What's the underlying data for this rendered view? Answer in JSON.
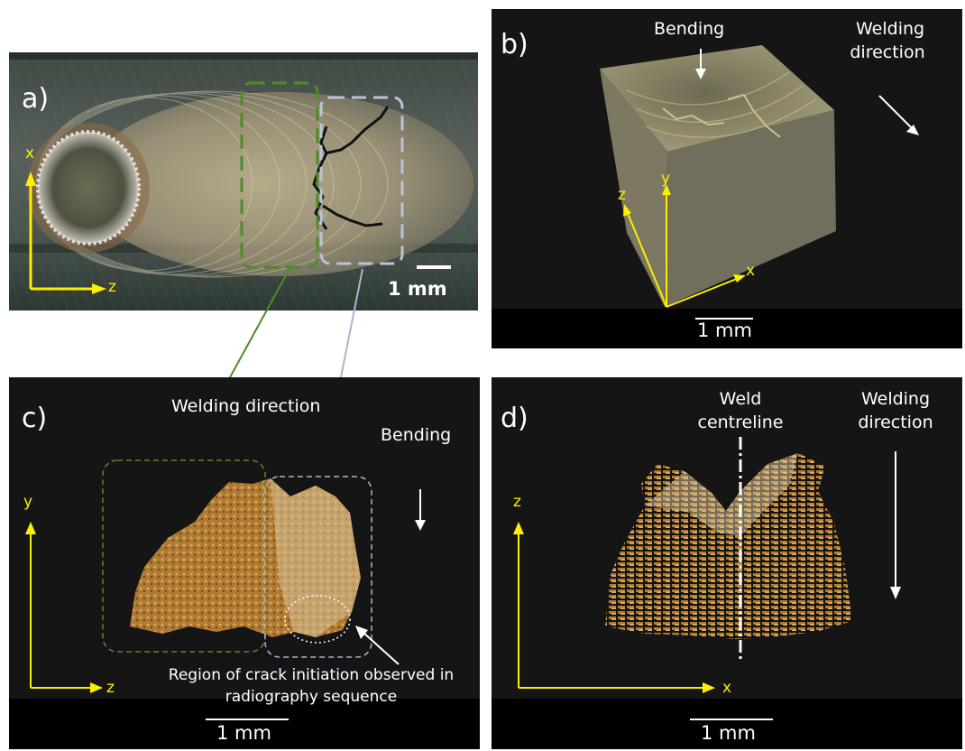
{
  "panels": {
    "a": {
      "label": "a)",
      "scale": "1 mm",
      "axis_v": "x",
      "axis_h": "z"
    },
    "b": {
      "label": "b)",
      "bending": "Bending",
      "welding_line1": "Welding",
      "welding_line2": "direction",
      "axis_z": "z",
      "axis_y": "y",
      "axis_x": "x",
      "scale": "1 mm"
    },
    "c": {
      "label": "c)",
      "welding_direction": "Welding direction",
      "bending": "Bending",
      "axis_v": "y",
      "axis_h": "z",
      "note_line1": "Region of crack initiation observed in",
      "note_line2": "radiography sequence",
      "scale": "1 mm"
    },
    "d": {
      "label": "d)",
      "centreline_line1": "Weld",
      "centreline_line2": "centreline",
      "welding_line1": "Welding",
      "welding_line2": "direction",
      "axis_v": "z",
      "axis_h": "x",
      "scale": "1 mm"
    }
  },
  "colors": {
    "axis": "#ffee00",
    "green_box": "#5a8a2c",
    "blue_box": "#a8b6cc",
    "background": "#151515",
    "text": "#ffffff",
    "weld": "#c8954a"
  }
}
